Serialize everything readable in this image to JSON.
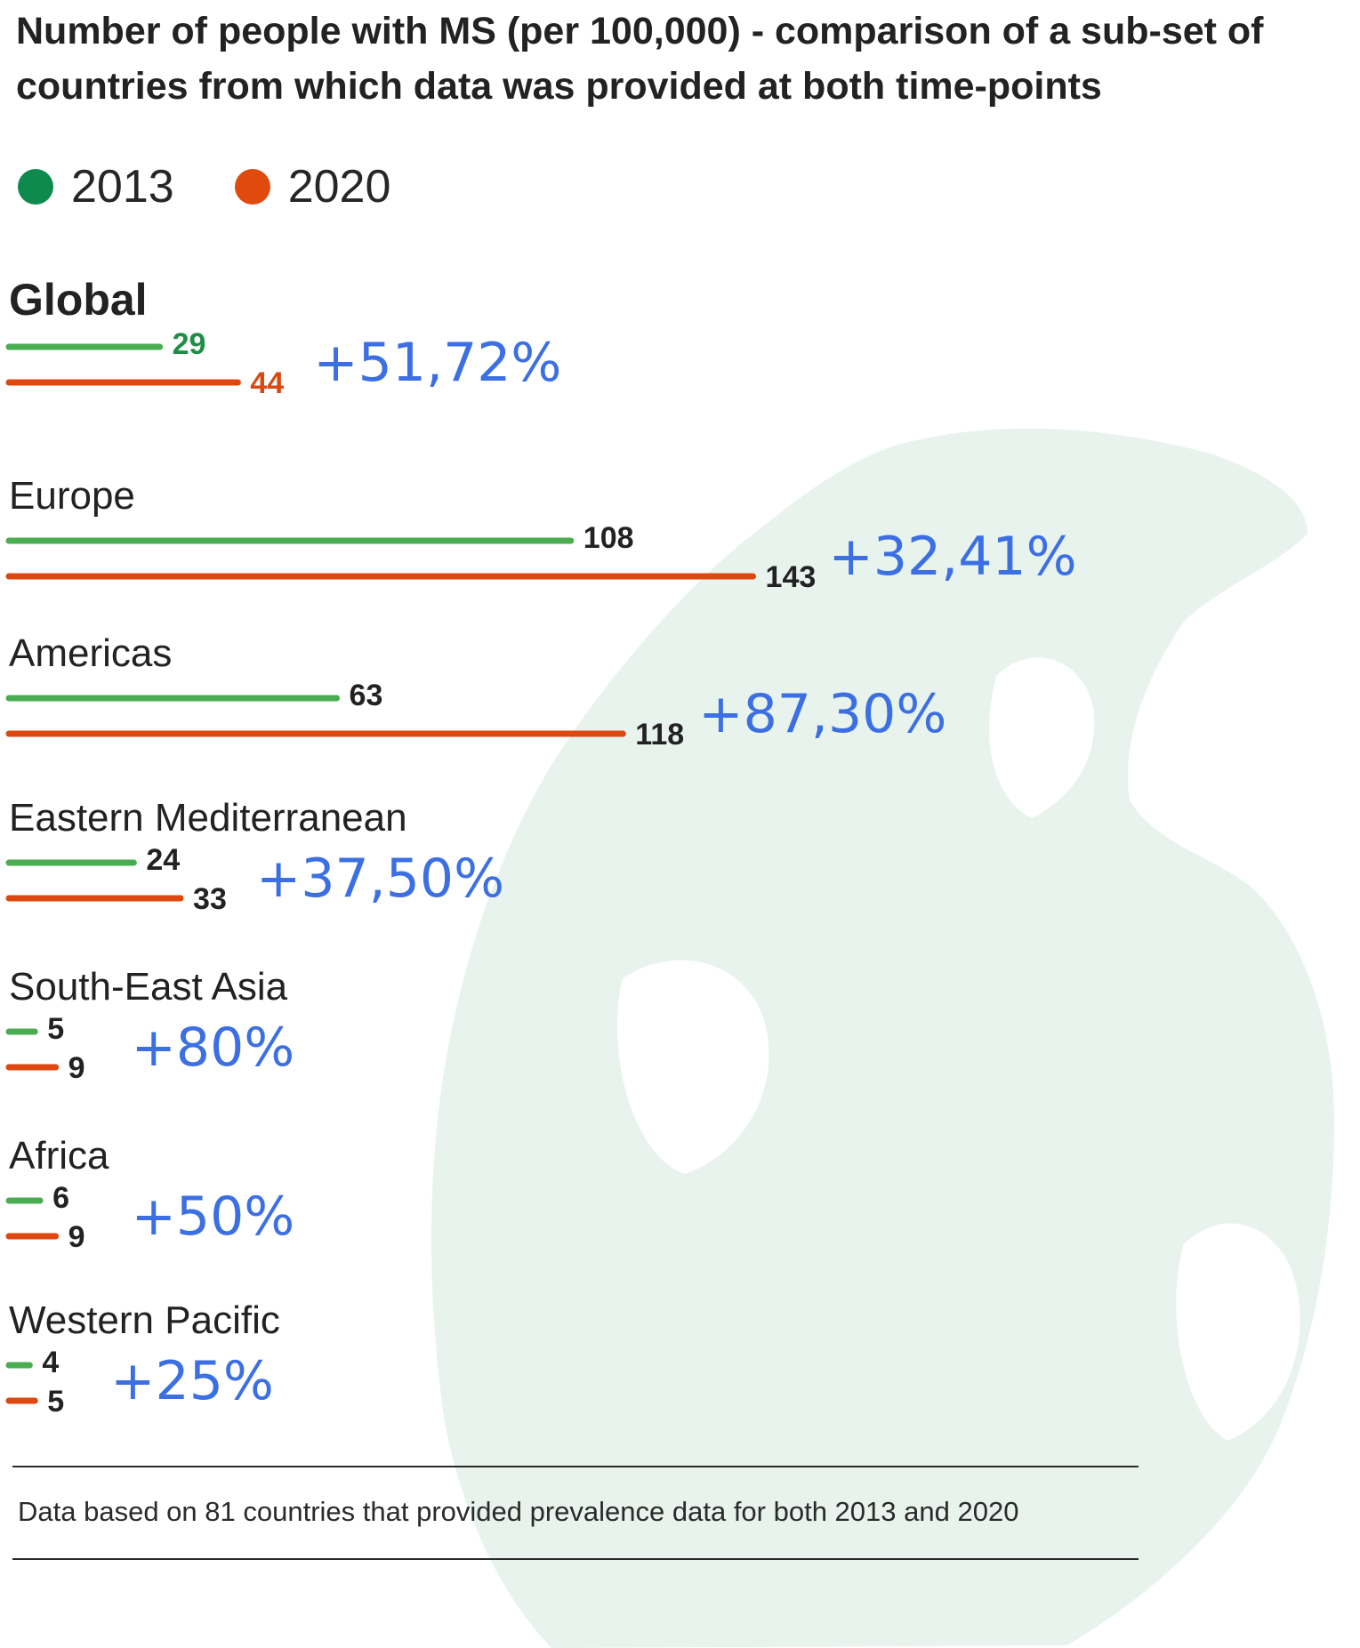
{
  "colors": {
    "series_2013": "#4aad52",
    "series_2020": "#de4810",
    "legend_2013": "#0f8a4f",
    "legend_2020": "#e04a0c",
    "global_2013_label": "#1f8f46",
    "global_2020_label": "#d9480f",
    "value_label": "#222222",
    "change_label": "#3b6fe3",
    "globe": "#e7f3ec"
  },
  "title": "Number of people with MS (per 100,000) - comparison of a sub-set of countries from which data was provided at both time-points",
  "legend": [
    {
      "label": "2013",
      "color": "#0f8a4f"
    },
    {
      "label": "2020",
      "color": "#e04a0c"
    }
  ],
  "chart_data": {
    "type": "bar",
    "orientation": "horizontal",
    "categories": [
      "Global",
      "Europe",
      "Americas",
      "Eastern Mediterranean",
      "South-East Asia",
      "Africa",
      "Western Pacific"
    ],
    "series": [
      {
        "name": "2013",
        "values": [
          29,
          108,
          63,
          24,
          5,
          6,
          4
        ]
      },
      {
        "name": "2020",
        "values": [
          44,
          143,
          118,
          33,
          9,
          9,
          5
        ]
      }
    ],
    "change_labels": [
      "+51,72%",
      "+32,41%",
      "+87,30%",
      "+37,50%",
      "+80%",
      "+50%",
      "+25%"
    ],
    "legend_position": "top-left",
    "grid": false
  },
  "footnote": "Data based on 81 countries that provided prevalence data for both 2013 and 2020",
  "background_icon": "globe-map-icon"
}
